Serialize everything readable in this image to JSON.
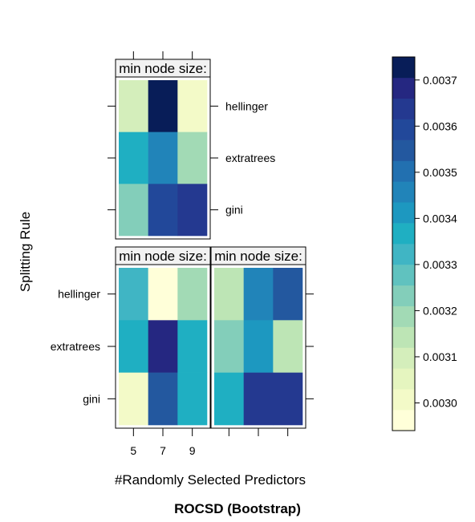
{
  "chart_data": {
    "type": "heatmap",
    "title": "ROCSD (Bootstrap)",
    "xlabel": "#Randomly Selected Predictors",
    "ylabel": "Splitting Rule",
    "x_categories": [
      "5",
      "7",
      "9"
    ],
    "y_categories": [
      "gini",
      "extratrees",
      "hellinger"
    ],
    "panels": [
      {
        "strip_label": "min node size:",
        "values": {
          "hellinger": [
            0.0031,
            0.00373,
            0.00301
          ],
          "extratrees": [
            0.00338,
            0.00346,
            0.0032
          ],
          "gini": [
            0.00325,
            0.00361,
            0.00365
          ]
        }
      },
      {
        "strip_label": "min node size:",
        "values": {
          "hellinger": [
            0.0033,
            0.00295,
            0.00317
          ],
          "extratrees": [
            0.00338,
            0.00368,
            0.00338
          ],
          "gini": [
            0.00301,
            0.00355,
            0.00338
          ]
        }
      },
      {
        "strip_label": "min node size:",
        "values": {
          "hellinger": [
            0.00313,
            0.00346,
            0.00355
          ],
          "extratrees": [
            0.00322,
            0.0034,
            0.00316
          ],
          "gini": [
            0.00338,
            0.00363,
            0.00363
          ]
        }
      }
    ],
    "colorbar": {
      "range": [
        0.00294,
        0.00375
      ],
      "ticks": [
        "0.0030",
        "0.0031",
        "0.0032",
        "0.0033",
        "0.0034",
        "0.0035",
        "0.0036",
        "0.0037"
      ],
      "colors": [
        "#FFFFD9",
        "#F3FAC8",
        "#E5F5BF",
        "#D4EEBB",
        "#BDE5B5",
        "#A2DAB5",
        "#83CEBA",
        "#60C2BF",
        "#40B5C4",
        "#1FAFC2",
        "#1D98C0",
        "#2184B9",
        "#2270B0",
        "#23589F",
        "#22489A",
        "#243990",
        "#252781",
        "#081D58"
      ]
    }
  }
}
